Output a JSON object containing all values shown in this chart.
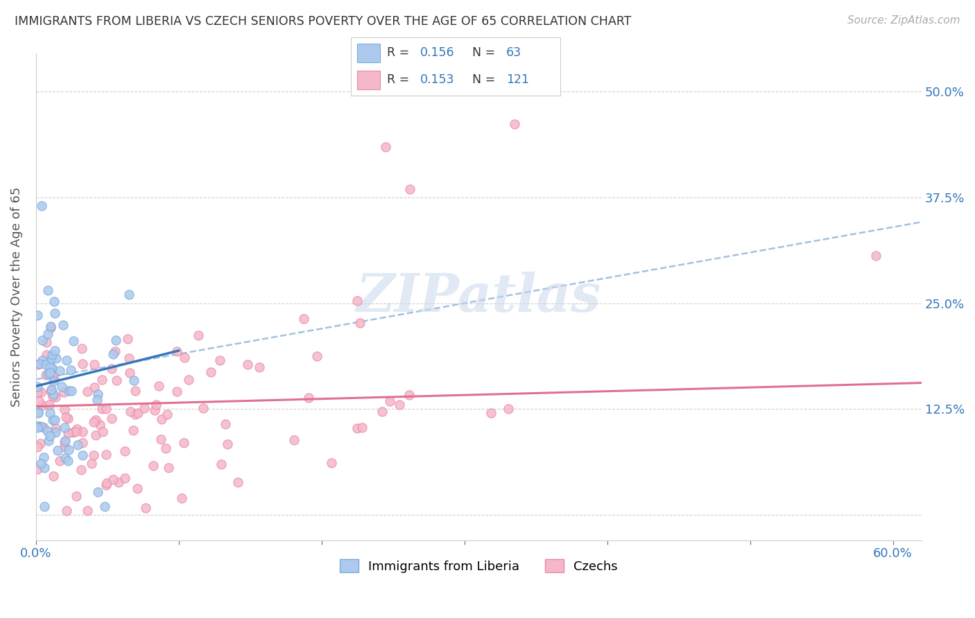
{
  "title": "IMMIGRANTS FROM LIBERIA VS CZECH SENIORS POVERTY OVER THE AGE OF 65 CORRELATION CHART",
  "source": "Source: ZipAtlas.com",
  "ylabel": "Seniors Poverty Over the Age of 65",
  "xlim": [
    0.0,
    0.62
  ],
  "ylim": [
    -0.03,
    0.545
  ],
  "xticks": [
    0.0,
    0.1,
    0.2,
    0.3,
    0.4,
    0.5,
    0.6
  ],
  "xticklabels": [
    "0.0%",
    "",
    "",
    "",
    "",
    "",
    "60.0%"
  ],
  "ytick_positions": [
    0.0,
    0.125,
    0.25,
    0.375,
    0.5
  ],
  "ytick_labels": [
    "",
    "12.5%",
    "25.0%",
    "37.5%",
    "50.0%"
  ],
  "background_color": "#ffffff",
  "grid_color": "#d0d0d0",
  "liberia_color": "#adc9ee",
  "liberia_edge_color": "#7aaad8",
  "czech_color": "#f5b8c8",
  "czech_edge_color": "#e888a8",
  "liberia_line_color": "#3377bb",
  "czech_line_color": "#e07090",
  "dashed_line_color": "#99bbdd",
  "R_liberia": 0.156,
  "N_liberia": 63,
  "R_czech": 0.153,
  "N_czech": 121,
  "watermark": "ZIPatlas",
  "watermark_color": "#c8d8ec",
  "title_fontsize": 12.5,
  "axis_label_fontsize": 13,
  "tick_fontsize": 13,
  "legend_fontsize": 13
}
